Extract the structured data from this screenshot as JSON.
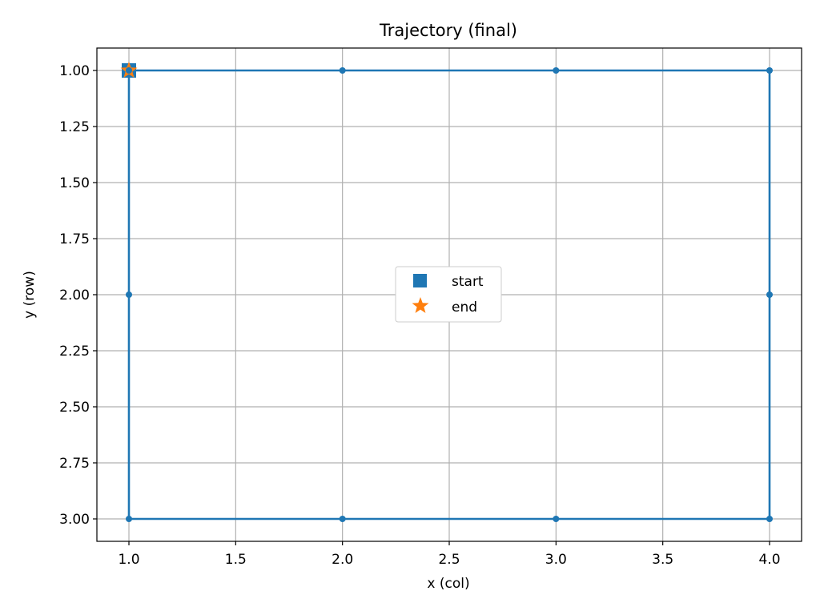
{
  "chart_data": {
    "type": "line",
    "title": "Trajectory (final)",
    "xlabel": "x (col)",
    "ylabel": "y (row)",
    "xlim": [
      0.85,
      4.15
    ],
    "ylim": [
      3.1,
      0.9
    ],
    "y_inverted": true,
    "grid": true,
    "xticks": [
      1.0,
      1.5,
      2.0,
      2.5,
      3.0,
      3.5,
      4.0
    ],
    "xtick_labels": [
      "1.0",
      "1.5",
      "2.0",
      "2.5",
      "3.0",
      "3.5",
      "4.0"
    ],
    "yticks": [
      1.0,
      1.25,
      1.5,
      1.75,
      2.0,
      2.25,
      2.5,
      2.75,
      3.0
    ],
    "ytick_labels": [
      "1.00",
      "1.25",
      "1.50",
      "1.75",
      "2.00",
      "2.25",
      "2.50",
      "2.75",
      "3.00"
    ],
    "series": [
      {
        "color": "#1f77b4",
        "marker": "circle",
        "x": [
          1,
          2,
          3,
          4,
          4,
          4,
          3,
          2,
          1,
          1,
          1
        ],
        "y": [
          1,
          1,
          1,
          1,
          2,
          3,
          3,
          3,
          3,
          2,
          1
        ]
      },
      {
        "name": "start",
        "color": "#1f77b4",
        "marker": "square",
        "x": [
          1
        ],
        "y": [
          1
        ]
      },
      {
        "name": "end",
        "color": "#ff7f0e",
        "marker": "star",
        "x": [
          1
        ],
        "y": [
          1
        ]
      }
    ],
    "legend": {
      "placement": "center",
      "entries": [
        "start",
        "end"
      ]
    }
  }
}
